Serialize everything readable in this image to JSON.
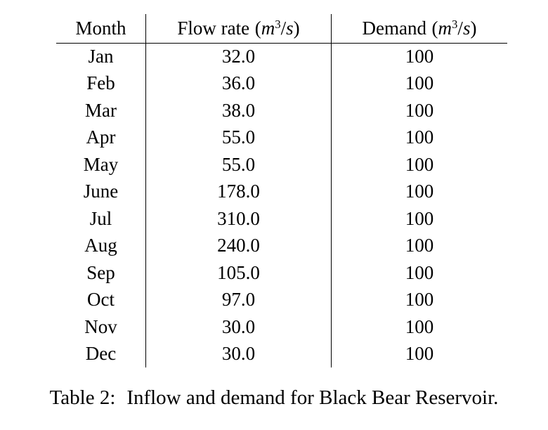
{
  "page": {
    "background_color": "#ffffff",
    "text_color": "#000000"
  },
  "table": {
    "columns": {
      "month": {
        "label": "Month"
      },
      "flow": {
        "name": "Flow rate"
      },
      "demand": {
        "name": "Demand"
      },
      "unit": {
        "open": "(",
        "var_m": "m",
        "exponent": "3",
        "slash": "/",
        "var_s": "s",
        "close": ")"
      }
    },
    "rows": [
      {
        "month": "Jan",
        "flow": "32.0",
        "demand": "100"
      },
      {
        "month": "Feb",
        "flow": "36.0",
        "demand": "100"
      },
      {
        "month": "Mar",
        "flow": "38.0",
        "demand": "100"
      },
      {
        "month": "Apr",
        "flow": "55.0",
        "demand": "100"
      },
      {
        "month": "May",
        "flow": "55.0",
        "demand": "100"
      },
      {
        "month": "June",
        "flow": "178.0",
        "demand": "100"
      },
      {
        "month": "Jul",
        "flow": "310.0",
        "demand": "100"
      },
      {
        "month": "Aug",
        "flow": "240.0",
        "demand": "100"
      },
      {
        "month": "Sep",
        "flow": "105.0",
        "demand": "100"
      },
      {
        "month": "Oct",
        "flow": "97.0",
        "demand": "100"
      },
      {
        "month": "Nov",
        "flow": "30.0",
        "demand": "100"
      },
      {
        "month": "Dec",
        "flow": "30.0",
        "demand": "100"
      }
    ]
  },
  "caption": {
    "label": "Table 2:",
    "text": "Inflow and demand for Black Bear Reservoir."
  }
}
